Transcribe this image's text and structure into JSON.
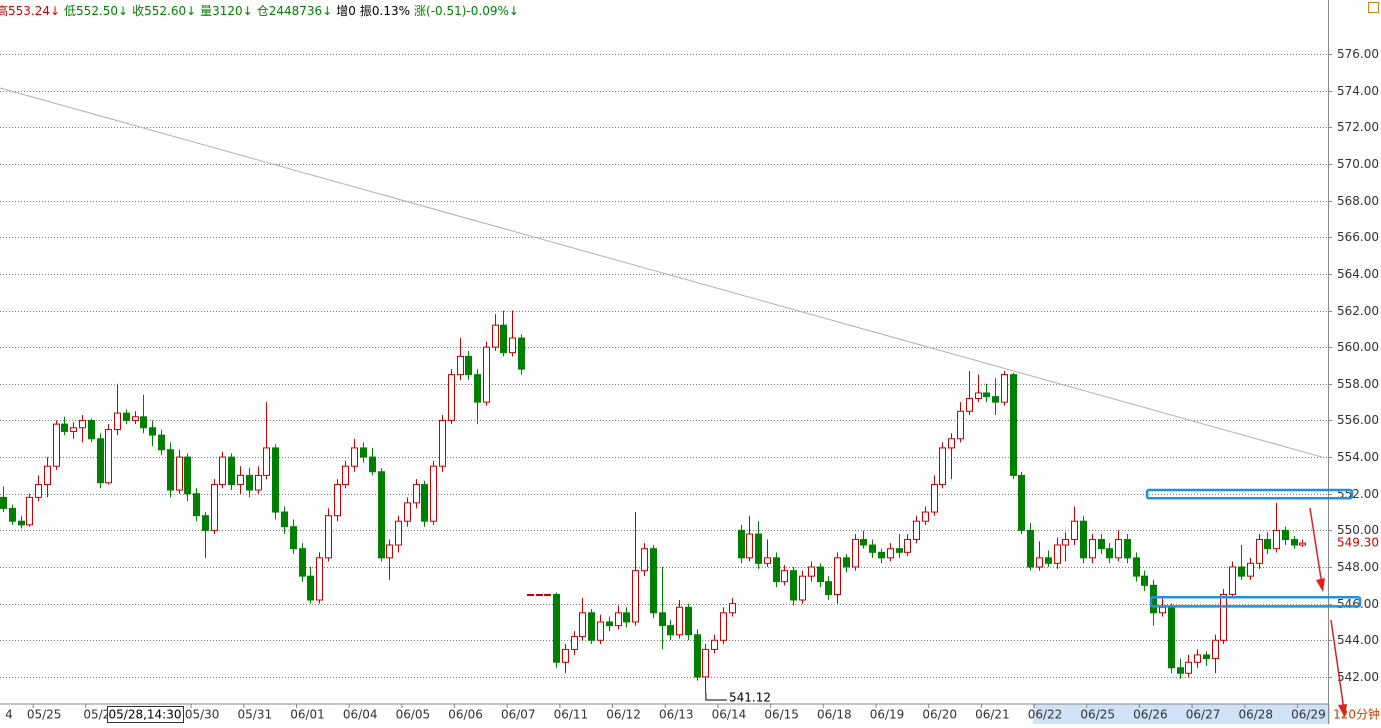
{
  "chart_data": {
    "type": "candlestick",
    "header": [
      {
        "text": "高553.24↓",
        "color": "#d00000"
      },
      {
        "text": "低552.50↓",
        "color": "#008000"
      },
      {
        "text": "收552.60↓",
        "color": "#008000"
      },
      {
        "text": "量3120↓",
        "color": "#008000"
      },
      {
        "text": "仓2448736↓",
        "color": "#008000"
      },
      {
        "text": "增0",
        "color": "#000000"
      },
      {
        "text": "振0.13%",
        "color": "#000000"
      },
      {
        "text": "涨(-0.51)-0.09%↓",
        "color": "#008000"
      }
    ],
    "categories": [
      "4",
      null,
      null,
      null,
      "05/25",
      null,
      null,
      null,
      null,
      null,
      "05/2",
      null,
      null,
      null,
      null,
      null,
      null,
      null,
      null,
      null,
      null,
      null,
      "05/30",
      null,
      null,
      null,
      null,
      null,
      "05/31",
      null,
      null,
      null,
      null,
      null,
      "06/01",
      null,
      null,
      null,
      null,
      null,
      "06/04",
      null,
      null,
      null,
      null,
      null,
      "06/05",
      null,
      null,
      null,
      null,
      null,
      "06/06",
      null,
      null,
      null,
      null,
      null,
      "06/07",
      null,
      null,
      null,
      null,
      null,
      "06/11",
      null,
      null,
      null,
      null,
      null,
      "06/12",
      null,
      null,
      null,
      null,
      null,
      "06/13",
      null,
      null,
      null,
      null,
      null,
      "06/14",
      null,
      null,
      null,
      null,
      null,
      "06/15",
      null,
      null,
      null,
      null,
      null,
      "06/18",
      null,
      null,
      null,
      null,
      null,
      "06/19",
      null,
      null,
      null,
      null,
      null,
      "06/20",
      null,
      null,
      null,
      null,
      null,
      "06/21",
      null,
      null,
      null,
      null,
      null,
      "06/22",
      null,
      null,
      null,
      null,
      null,
      "06/25",
      null,
      null,
      null,
      null,
      null,
      "06/26",
      null,
      null,
      null,
      null,
      null,
      "06/27",
      null,
      null,
      null,
      null,
      null,
      "06/28",
      null,
      null,
      null,
      null,
      null,
      "06/29"
    ],
    "candles": [
      [
        551.8,
        552.4,
        551.0,
        551.2
      ],
      [
        551.2,
        551.4,
        550.3,
        550.5
      ],
      [
        550.5,
        550.8,
        550.1,
        550.3
      ],
      [
        550.3,
        552.0,
        550.2,
        551.8
      ],
      [
        551.8,
        553.0,
        551.6,
        552.5
      ],
      [
        552.5,
        554.0,
        551.8,
        553.5
      ],
      [
        553.5,
        556.0,
        553.3,
        555.8
      ],
      [
        555.8,
        556.2,
        555.2,
        555.4
      ],
      [
        555.4,
        555.9,
        555.0,
        555.6
      ],
      [
        555.6,
        556.3,
        554.8,
        556.0
      ],
      [
        556.0,
        556.1,
        554.8,
        555.0
      ],
      [
        555.0,
        555.3,
        552.3,
        552.6
      ],
      [
        552.6,
        555.8,
        552.5,
        555.5
      ],
      [
        555.5,
        558.0,
        555.2,
        556.4
      ],
      [
        556.4,
        556.6,
        555.8,
        556.0
      ],
      [
        556.0,
        556.5,
        555.8,
        556.2
      ],
      [
        556.2,
        557.4,
        555.3,
        555.6
      ],
      [
        555.6,
        556.0,
        554.6,
        555.2
      ],
      [
        555.2,
        555.5,
        554.1,
        554.4
      ],
      [
        554.4,
        554.8,
        551.8,
        552.2
      ],
      [
        552.2,
        554.4,
        552.0,
        554.0
      ],
      [
        554.0,
        554.2,
        551.6,
        552.0
      ],
      [
        552.0,
        552.3,
        550.5,
        550.8
      ],
      [
        550.8,
        551.0,
        548.5,
        550.0
      ],
      [
        550.0,
        552.8,
        549.8,
        552.5
      ],
      [
        552.5,
        554.3,
        552.3,
        554.0
      ],
      [
        554.0,
        554.2,
        552.2,
        552.5
      ],
      [
        552.5,
        553.5,
        552.0,
        553.0
      ],
      [
        553.0,
        553.4,
        551.8,
        552.2
      ],
      [
        552.2,
        553.5,
        552.0,
        553.0
      ],
      [
        553.0,
        557.0,
        552.8,
        554.5
      ],
      [
        554.5,
        554.7,
        550.6,
        551.0
      ],
      [
        551.0,
        551.3,
        549.8,
        550.2
      ],
      [
        550.2,
        550.6,
        548.7,
        549.0
      ],
      [
        549.0,
        549.3,
        547.2,
        547.5
      ],
      [
        547.5,
        548.0,
        546.0,
        546.2
      ],
      [
        546.2,
        548.8,
        546.0,
        548.5
      ],
      [
        548.5,
        551.2,
        548.3,
        550.8
      ],
      [
        550.8,
        552.8,
        550.5,
        552.5
      ],
      [
        552.5,
        553.8,
        552.3,
        553.5
      ],
      [
        553.5,
        555.0,
        553.2,
        554.5
      ],
      [
        554.5,
        554.8,
        553.7,
        554.0
      ],
      [
        554.0,
        554.5,
        553.0,
        553.2
      ],
      [
        553.2,
        553.4,
        548.3,
        548.5
      ],
      [
        548.5,
        549.5,
        547.3,
        549.2
      ],
      [
        549.2,
        550.8,
        548.8,
        550.5
      ],
      [
        550.5,
        551.8,
        550.2,
        551.5
      ],
      [
        551.5,
        552.8,
        551.2,
        552.5
      ],
      [
        552.5,
        552.7,
        550.2,
        550.5
      ],
      [
        550.5,
        553.8,
        550.3,
        553.5
      ],
      [
        553.5,
        556.3,
        553.2,
        556.0
      ],
      [
        556.0,
        558.8,
        555.8,
        558.5
      ],
      [
        558.5,
        560.5,
        558.2,
        559.5
      ],
      [
        559.5,
        559.8,
        558.2,
        558.5
      ],
      [
        558.5,
        558.8,
        555.8,
        557.0
      ],
      [
        557.0,
        560.3,
        556.8,
        560.0
      ],
      [
        560.0,
        561.8,
        559.8,
        561.2
      ],
      [
        561.2,
        562.0,
        559.5,
        559.7
      ],
      [
        559.7,
        562.0,
        559.5,
        560.5
      ],
      [
        560.5,
        560.7,
        558.5,
        558.8
      ],
      [
        546.5,
        546.5,
        546.5,
        546.5
      ],
      [
        546.5,
        546.5,
        546.5,
        546.5
      ],
      [
        546.5,
        546.5,
        546.5,
        546.5
      ],
      [
        546.5,
        546.6,
        542.5,
        542.8
      ],
      [
        542.8,
        543.8,
        542.2,
        543.5
      ],
      [
        543.5,
        544.5,
        543.2,
        544.2
      ],
      [
        544.2,
        546.3,
        544.0,
        545.5
      ],
      [
        545.5,
        545.7,
        543.8,
        544.0
      ],
      [
        544.0,
        545.4,
        543.8,
        545.0
      ],
      [
        545.0,
        545.3,
        544.5,
        544.8
      ],
      [
        544.8,
        545.9,
        544.6,
        545.5
      ],
      [
        545.5,
        545.8,
        544.7,
        545.0
      ],
      [
        545.0,
        551.0,
        544.8,
        547.8
      ],
      [
        547.8,
        549.3,
        547.5,
        549.0
      ],
      [
        549.0,
        549.2,
        545.2,
        545.5
      ],
      [
        545.5,
        548.0,
        543.5,
        544.8
      ],
      [
        544.8,
        545.1,
        544.0,
        544.3
      ],
      [
        544.3,
        546.2,
        544.1,
        545.8
      ],
      [
        545.8,
        546.0,
        544.0,
        544.3
      ],
      [
        544.3,
        544.6,
        541.8,
        542.0
      ],
      [
        542.0,
        543.8,
        541.12,
        543.5
      ],
      [
        543.5,
        544.3,
        543.3,
        544.0
      ],
      [
        544.0,
        545.8,
        543.8,
        545.5
      ],
      [
        545.5,
        546.3,
        545.3,
        546.0
      ],
      [
        550.0,
        550.3,
        548.2,
        548.5
      ],
      [
        548.5,
        550.8,
        548.3,
        549.8
      ],
      [
        549.8,
        550.5,
        547.9,
        548.2
      ],
      [
        548.2,
        549.5,
        548.0,
        548.5
      ],
      [
        548.5,
        548.8,
        546.9,
        547.2
      ],
      [
        547.2,
        548.1,
        547.0,
        547.8
      ],
      [
        547.8,
        548.0,
        545.9,
        546.2
      ],
      [
        546.2,
        547.8,
        546.0,
        547.5
      ],
      [
        547.5,
        548.3,
        547.2,
        548.0
      ],
      [
        548.0,
        548.2,
        546.9,
        547.2
      ],
      [
        547.2,
        547.5,
        546.2,
        546.5
      ],
      [
        546.5,
        548.8,
        546.0,
        548.5
      ],
      [
        548.5,
        548.7,
        547.7,
        548.0
      ],
      [
        548.0,
        549.8,
        547.8,
        549.5
      ],
      [
        549.5,
        550.0,
        549.0,
        549.2
      ],
      [
        549.2,
        549.5,
        548.5,
        548.8
      ],
      [
        548.8,
        549.0,
        548.2,
        548.5
      ],
      [
        548.5,
        549.3,
        548.3,
        549.0
      ],
      [
        549.0,
        549.8,
        548.5,
        548.8
      ],
      [
        548.8,
        549.8,
        548.6,
        549.5
      ],
      [
        549.5,
        550.8,
        549.3,
        550.5
      ],
      [
        550.5,
        551.3,
        550.3,
        551.0
      ],
      [
        551.0,
        553.0,
        550.8,
        552.5
      ],
      [
        552.5,
        554.8,
        552.3,
        554.5
      ],
      [
        554.5,
        555.3,
        552.8,
        555.0
      ],
      [
        555.0,
        557.0,
        554.8,
        556.5
      ],
      [
        556.5,
        558.7,
        556.3,
        557.2
      ],
      [
        557.2,
        558.5,
        557.0,
        557.5
      ],
      [
        557.5,
        558.0,
        557.0,
        557.3
      ],
      [
        557.3,
        558.3,
        556.3,
        557.0
      ],
      [
        557.0,
        558.7,
        556.8,
        558.5
      ],
      [
        558.5,
        558.6,
        552.8,
        553.0
      ],
      [
        553.0,
        553.2,
        549.8,
        550.0
      ],
      [
        550.0,
        550.4,
        547.8,
        548.0
      ],
      [
        548.0,
        549.4,
        547.8,
        548.5
      ],
      [
        548.5,
        548.9,
        548.0,
        548.2
      ],
      [
        548.2,
        549.6,
        547.9,
        549.2
      ],
      [
        549.2,
        549.9,
        548.3,
        549.5
      ],
      [
        549.5,
        551.3,
        549.2,
        550.5
      ],
      [
        550.5,
        550.8,
        548.2,
        548.5
      ],
      [
        548.5,
        549.8,
        548.2,
        549.5
      ],
      [
        549.5,
        549.8,
        548.7,
        549.0
      ],
      [
        549.0,
        549.3,
        548.2,
        548.5
      ],
      [
        548.5,
        550.0,
        548.3,
        549.5
      ],
      [
        549.5,
        549.8,
        548.2,
        548.5
      ],
      [
        548.5,
        548.8,
        547.2,
        547.5
      ],
      [
        547.5,
        547.8,
        546.7,
        547.0
      ],
      [
        547.0,
        547.3,
        544.8,
        545.5
      ],
      [
        545.5,
        546.3,
        545.3,
        545.8
      ],
      [
        545.8,
        546.0,
        542.2,
        542.5
      ],
      [
        542.5,
        543.0,
        541.9,
        542.2
      ],
      [
        542.2,
        543.2,
        542.0,
        542.8
      ],
      [
        542.8,
        543.5,
        542.5,
        543.2
      ],
      [
        543.2,
        543.4,
        542.6,
        543.0
      ],
      [
        543.0,
        544.3,
        542.2,
        544.0
      ],
      [
        544.0,
        546.8,
        543.8,
        546.5
      ],
      [
        546.5,
        548.3,
        546.3,
        548.0
      ],
      [
        548.0,
        549.2,
        547.3,
        547.5
      ],
      [
        547.5,
        548.5,
        547.3,
        548.2
      ],
      [
        548.2,
        549.8,
        547.9,
        549.5
      ],
      [
        549.5,
        549.9,
        548.7,
        549.0
      ],
      [
        549.0,
        551.5,
        548.8,
        550.0
      ],
      [
        550.0,
        550.2,
        549.2,
        549.5
      ],
      [
        549.5,
        549.7,
        549.0,
        549.2
      ],
      [
        549.2,
        549.5,
        549.1,
        549.3
      ]
    ],
    "up_color": "#c80000",
    "down_color": "#008000",
    "ylim": [
      540.74,
      578.95
    ],
    "yticks": [
      {
        "value": 542,
        "label": "542.00"
      },
      {
        "value": 544,
        "label": "544.00"
      },
      {
        "value": 546,
        "label": "546.00"
      },
      {
        "value": 548,
        "label": "548.00"
      },
      {
        "value": 550,
        "label": "550.00"
      },
      {
        "value": 552,
        "label": "552.00"
      },
      {
        "value": 554,
        "label": "554.00"
      },
      {
        "value": 556,
        "label": "556.00"
      },
      {
        "value": 558,
        "label": "558.00"
      },
      {
        "value": 560,
        "label": "560.00"
      },
      {
        "value": 562,
        "label": "562.00"
      },
      {
        "value": 564,
        "label": "564.00"
      },
      {
        "value": 566,
        "label": "566.00"
      },
      {
        "value": 568,
        "label": "568.00"
      },
      {
        "value": 570,
        "label": "570.00"
      },
      {
        "value": 572,
        "label": "572.00"
      },
      {
        "value": 574,
        "label": "574.00"
      },
      {
        "value": 576,
        "label": "576.00"
      }
    ],
    "grid": true,
    "trendline": {
      "from": 574.15,
      "to": 554.0
    },
    "zones": [
      {
        "low": 551.75,
        "high": 552.2
      },
      {
        "low": 545.85,
        "high": 546.35
      }
    ],
    "low_annotation": 541.12,
    "last_price": {
      "value": 549.3,
      "label": "549.30"
    },
    "crosshair_label": "05/28,14:30",
    "period": "120分钟"
  }
}
